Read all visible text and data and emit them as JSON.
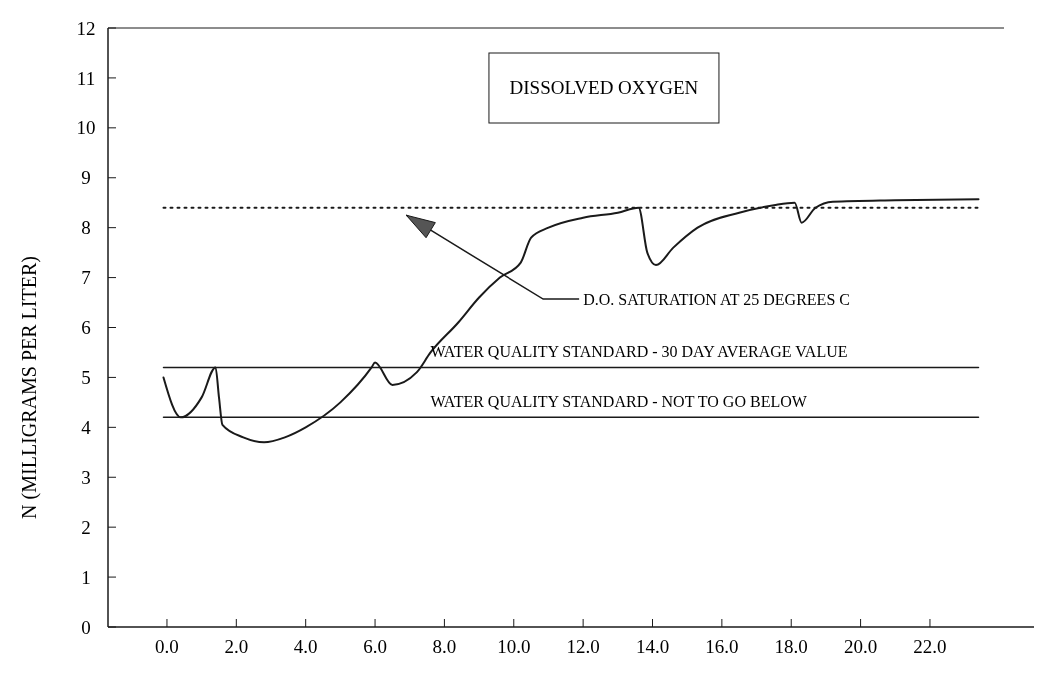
{
  "chart_data": {
    "type": "line",
    "title": "DISSOLVED OXYGEN",
    "ylabel": "N (MILLIGRAMS PER LITER)",
    "x": [
      -0.1,
      0.4,
      1.0,
      1.4,
      1.5,
      1.6,
      2.2,
      2.8,
      3.4,
      4.0,
      5.0,
      5.9,
      6.0,
      6.5,
      7.2,
      7.6,
      8.4,
      9.0,
      9.6,
      10.2,
      10.5,
      11.0,
      12.0,
      13.0,
      13.6,
      13.85,
      14.1,
      14.6,
      15.3,
      16.5,
      17.5,
      18.1,
      18.3,
      18.7,
      19.2,
      21.0,
      23.4
    ],
    "series": [
      {
        "color": "#1a1a1a",
        "values": [
          5.0,
          4.2,
          4.6,
          5.2,
          4.6,
          4.05,
          3.8,
          3.7,
          3.8,
          4.0,
          4.5,
          5.2,
          5.3,
          4.85,
          5.1,
          5.5,
          6.1,
          6.6,
          7.0,
          7.3,
          7.8,
          8.0,
          8.2,
          8.3,
          8.4,
          7.5,
          7.25,
          7.6,
          8.0,
          8.3,
          8.45,
          8.5,
          8.1,
          8.4,
          8.52,
          8.55,
          8.57
        ]
      }
    ],
    "xlim": [
      -1.7,
      25
    ],
    "ylim": [
      0,
      12
    ],
    "xticks": [
      {
        "value": 0,
        "label": "0.0"
      },
      {
        "value": 2,
        "label": "2.0"
      },
      {
        "value": 4,
        "label": "4.0"
      },
      {
        "value": 6,
        "label": "6.0"
      },
      {
        "value": 8,
        "label": "8.0"
      },
      {
        "value": 10,
        "label": "10.0"
      },
      {
        "value": 12,
        "label": "12.0"
      },
      {
        "value": 14,
        "label": "14.0"
      },
      {
        "value": 16,
        "label": "16.0"
      },
      {
        "value": 18,
        "label": "18.0"
      },
      {
        "value": 20,
        "label": "20.0"
      },
      {
        "value": 22,
        "label": "22.0"
      }
    ],
    "yticks": [
      0,
      1,
      2,
      3,
      4,
      5,
      6,
      7,
      8,
      9,
      10,
      11,
      12
    ],
    "ref_lines": [
      {
        "axis": "y",
        "value": 8.4,
        "label": "D.O. SATURATION AT 25 DEGREES C",
        "line_style": "dotted",
        "color": "#1a1a1a"
      },
      {
        "axis": "y",
        "value": 5.2,
        "label": "WATER QUALITY STANDARD - 30 DAY AVERAGE VALUE",
        "line_style": "solid",
        "color": "#1a1a1a"
      },
      {
        "axis": "y",
        "value": 4.2,
        "label": "WATER QUALITY STANDARD - NOT TO GO BELOW",
        "line_style": "solid",
        "color": "#1a1a1a"
      }
    ],
    "grid": false,
    "marker": "none",
    "line_style": "solid"
  }
}
